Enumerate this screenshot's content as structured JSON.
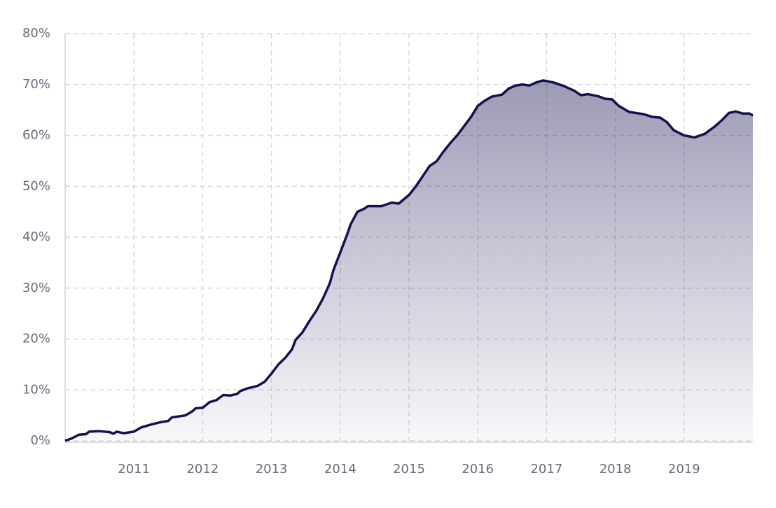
{
  "chart_data": {
    "type": "area",
    "color": "#15104f",
    "grid": true,
    "xlim": [
      2010,
      2020
    ],
    "xticks": [
      2011,
      2012,
      2013,
      2014,
      2015,
      2016,
      2017,
      2018,
      2019
    ],
    "ylim": [
      0,
      80
    ],
    "yticks": [
      {
        "value": 0,
        "label": "0%"
      },
      {
        "value": 10,
        "label": "10%"
      },
      {
        "value": 20,
        "label": "20%"
      },
      {
        "value": 30,
        "label": "30%"
      },
      {
        "value": 40,
        "label": "40%"
      },
      {
        "value": 50,
        "label": "50%"
      },
      {
        "value": 60,
        "label": "60%"
      },
      {
        "value": 70,
        "label": "70%"
      },
      {
        "value": 80,
        "label": "80%"
      }
    ],
    "x": [
      2010,
      2010.1,
      2010.2,
      2010.3,
      2010.35,
      2010.5,
      2010.65,
      2010.7,
      2010.75,
      2010.85,
      2011,
      2011.1,
      2011.25,
      2011.4,
      2011.5,
      2011.55,
      2011.75,
      2011.85,
      2011.9,
      2012,
      2012.1,
      2012.2,
      2012.3,
      2012.4,
      2012.5,
      2012.55,
      2012.65,
      2012.8,
      2012.9,
      2013,
      2013.1,
      2013.2,
      2013.3,
      2013.35,
      2013.45,
      2013.55,
      2013.65,
      2013.75,
      2013.85,
      2013.9,
      2014,
      2014.1,
      2014.15,
      2014.25,
      2014.35,
      2014.4,
      2014.6,
      2014.75,
      2014.85,
      2015,
      2015.1,
      2015.2,
      2015.3,
      2015.4,
      2015.5,
      2015.6,
      2015.7,
      2015.8,
      2015.9,
      2016,
      2016.1,
      2016.2,
      2016.35,
      2016.45,
      2016.55,
      2016.65,
      2016.75,
      2016.85,
      2016.95,
      2017.1,
      2017.25,
      2017.4,
      2017.5,
      2017.6,
      2017.75,
      2017.85,
      2017.95,
      2018.05,
      2018.2,
      2018.4,
      2018.55,
      2018.65,
      2018.75,
      2018.85,
      2019,
      2019.15,
      2019.3,
      2019.45,
      2019.55,
      2019.65,
      2019.75,
      2019.85,
      2019.95,
      2020
    ],
    "values": [
      0,
      0.5,
      1.2,
      1.3,
      1.8,
      1.9,
      1.7,
      1.4,
      1.8,
      1.5,
      1.8,
      2.6,
      3.2,
      3.7,
      3.9,
      4.6,
      5.0,
      5.8,
      6.4,
      6.5,
      7.6,
      8.0,
      9.0,
      8.9,
      9.2,
      9.8,
      10.3,
      10.8,
      11.6,
      13.2,
      15.0,
      16.3,
      18.0,
      19.8,
      21.3,
      23.5,
      25.5,
      28.0,
      31.0,
      33.5,
      37.0,
      40.5,
      42.5,
      45.0,
      45.6,
      46.1,
      46.1,
      46.8,
      46.6,
      48.3,
      50.0,
      52.0,
      54.0,
      54.9,
      56.8,
      58.5,
      60.0,
      61.8,
      63.6,
      65.8,
      66.8,
      67.6,
      68.0,
      69.2,
      69.8,
      70.0,
      69.8,
      70.4,
      70.8,
      70.4,
      69.7,
      68.8,
      67.9,
      68.1,
      67.7,
      67.2,
      67.1,
      65.8,
      64.6,
      64.2,
      63.6,
      63.5,
      62.6,
      61.0,
      60.0,
      59.6,
      60.3,
      61.8,
      63.0,
      64.4,
      64.7,
      64.3,
      64.3,
      63.9
    ]
  }
}
